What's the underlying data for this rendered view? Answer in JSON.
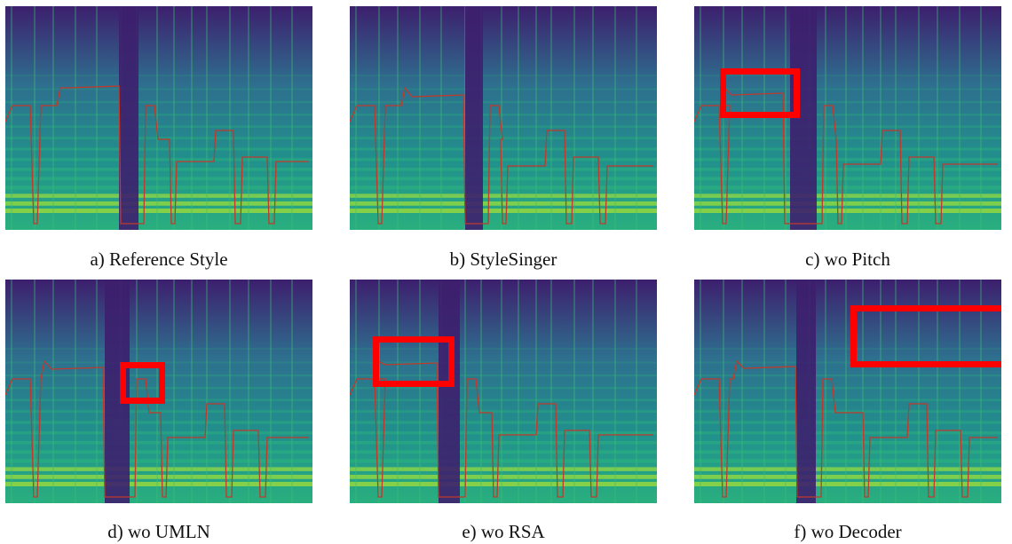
{
  "figure": {
    "panels": [
      {
        "key": "a",
        "caption": "a) Reference Style",
        "highlight": false
      },
      {
        "key": "b",
        "caption": "b) StyleSinger",
        "highlight": false
      },
      {
        "key": "c",
        "caption": "c) wo Pitch",
        "highlight": true
      },
      {
        "key": "d",
        "caption": "d) wo UMLN",
        "highlight": true
      },
      {
        "key": "e",
        "caption": "e) wo RSA",
        "highlight": true
      },
      {
        "key": "f",
        "caption": "f) wo Decoder",
        "highlight": true
      }
    ]
  },
  "colors": {
    "background_dark": "#3d1f6e",
    "background_mid": "#2e6f8e",
    "band_bright": "#95d840",
    "band_mid": "#29af7f",
    "pitch_line": "#c0392b",
    "highlight_box": "#ff0000"
  }
}
